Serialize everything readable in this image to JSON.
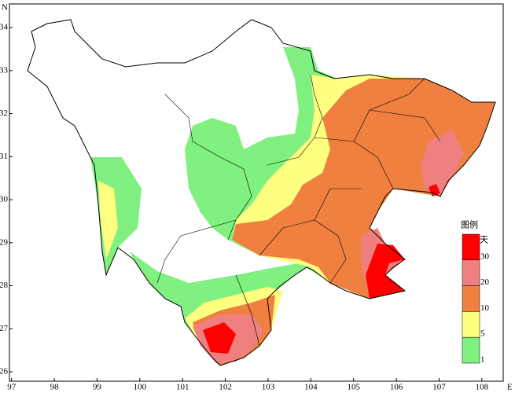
{
  "map": {
    "axes": {
      "x_label": "E",
      "y_label": "N",
      "xlim": [
        96.95,
        108.5
      ],
      "xticks": [
        97,
        98,
        99,
        100,
        101,
        102,
        103,
        104,
        105,
        106,
        107,
        108
      ],
      "ylim": [
        25.78,
        34.55
      ],
      "yticks": [
        26,
        27,
        28,
        29,
        30,
        31,
        32,
        33,
        34
      ]
    },
    "legend": {
      "title": "图例",
      "unit": "天",
      "items": [
        {
          "label": 30,
          "color": "#ff0000"
        },
        {
          "label": 20,
          "color": "#f08080"
        },
        {
          "label": 10,
          "color": "#f08040"
        },
        {
          "label": 5,
          "color": "#ffff80"
        },
        {
          "label": 1,
          "color": "#80f080"
        }
      ]
    }
  }
}
